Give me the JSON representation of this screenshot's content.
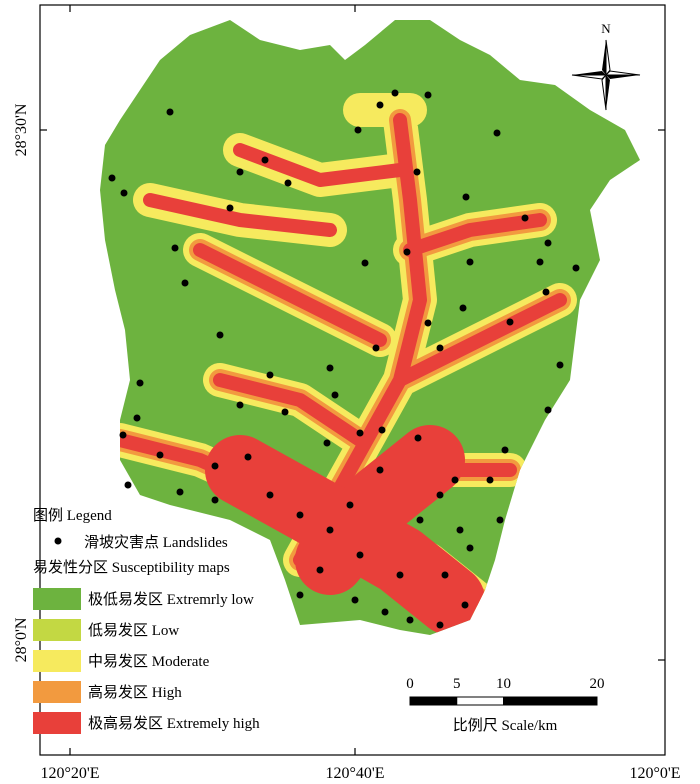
{
  "map": {
    "north_label": "N",
    "lat_labels": [
      "28°30'N",
      "28°0'N"
    ],
    "lon_labels": [
      "120°20'E",
      "120°40'E",
      "120°0'E"
    ],
    "legend": {
      "title": "图例 Legend",
      "landslides": "滑坡灾害点 Landslides",
      "section_title": "易发性分区 Susceptibility maps",
      "classes": [
        {
          "label": "极低易发区 Extremrly low",
          "color": "#6db33f"
        },
        {
          "label": "低易发区 Low",
          "color": "#c3d843"
        },
        {
          "label": "中易发区 Moderate",
          "color": "#f6ea5e"
        },
        {
          "label": "高易发区 High",
          "color": "#f29a3f"
        },
        {
          "label": "极高易发区 Extremely high",
          "color": "#e8403a"
        }
      ]
    },
    "scale_bar": {
      "ticks": [
        0,
        5,
        10,
        20
      ],
      "unit_label": "比例尺 Scale/km"
    }
  }
}
